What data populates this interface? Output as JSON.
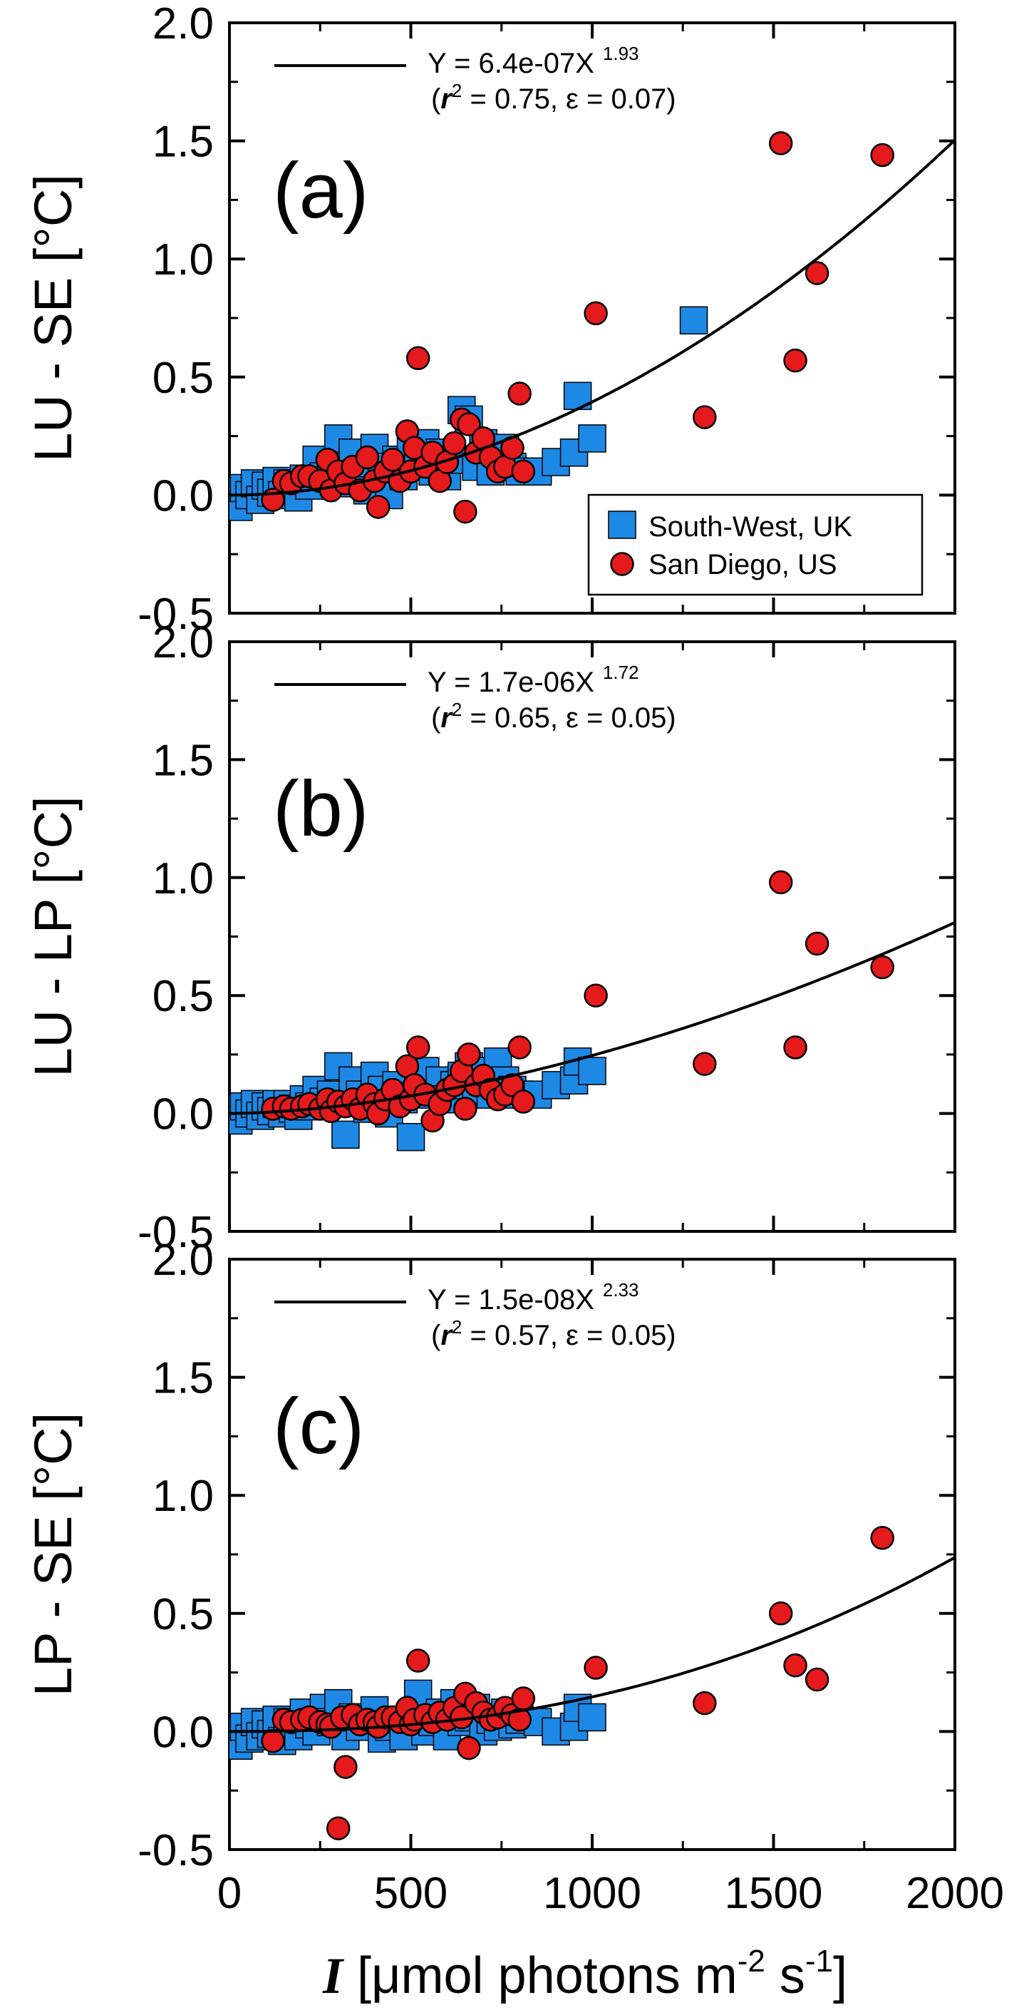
{
  "chart_data": [
    {
      "type": "scatter",
      "panel_label": "(a)",
      "ylabel": "LU - SE [°C]",
      "xlim": [
        0,
        2000
      ],
      "ylim": [
        -0.5,
        2.0
      ],
      "yticks": [
        "2.0",
        "1.5",
        "1.0",
        "0.5",
        "0.0",
        "-0.5"
      ],
      "fit": {
        "a": 6.4e-07,
        "b": 1.93,
        "label": "Y = 6.4e-07X",
        "exponent": "1.93",
        "stats_r": "r",
        "stats_sup": "2",
        "stats_rest": " = 0.75, ε = 0.07)"
      },
      "legend": [
        "South-West, UK",
        "San Diego, US"
      ],
      "series": [
        {
          "name": "South-West, UK",
          "marker": "square",
          "x": [
            10,
            25,
            40,
            55,
            70,
            85,
            100,
            115,
            130,
            145,
            160,
            175,
            190,
            205,
            220,
            240,
            260,
            280,
            300,
            320,
            340,
            360,
            380,
            400,
            420,
            440,
            460,
            480,
            500,
            520,
            540,
            560,
            580,
            600,
            620,
            640,
            660,
            680,
            700,
            720,
            740,
            760,
            780,
            800,
            850,
            900,
            950,
            960,
            1000,
            1280
          ],
          "y": [
            0.02,
            -0.05,
            0.03,
            0.0,
            0.05,
            -0.02,
            0.04,
            0.01,
            0.06,
            0.0,
            0.05,
            0.03,
            -0.01,
            0.07,
            0.04,
            0.15,
            0.08,
            0.12,
            0.24,
            0.05,
            0.18,
            0.1,
            0.02,
            0.2,
            0.12,
            0.0,
            0.15,
            0.08,
            0.2,
            0.14,
            0.22,
            0.1,
            0.18,
            0.08,
            0.15,
            0.36,
            0.32,
            0.12,
            0.22,
            0.1,
            0.18,
            0.2,
            0.12,
            0.1,
            0.1,
            0.14,
            0.18,
            0.42,
            0.24,
            0.74
          ]
        },
        {
          "name": "San Diego, US",
          "marker": "circle",
          "x": [
            120,
            150,
            170,
            200,
            220,
            250,
            270,
            280,
            300,
            320,
            340,
            360,
            380,
            400,
            410,
            430,
            450,
            470,
            490,
            500,
            510,
            520,
            540,
            560,
            580,
            600,
            620,
            640,
            650,
            660,
            680,
            700,
            720,
            740,
            760,
            780,
            800,
            810,
            1010,
            1310,
            1520,
            1560,
            1620,
            1800
          ],
          "y": [
            -0.02,
            0.06,
            0.05,
            0.08,
            0.08,
            0.06,
            0.15,
            0.02,
            0.1,
            0.05,
            0.12,
            0.02,
            0.16,
            0.06,
            -0.05,
            0.1,
            0.15,
            0.06,
            0.27,
            0.1,
            0.2,
            0.58,
            0.12,
            0.18,
            0.06,
            0.14,
            0.22,
            0.32,
            -0.07,
            0.3,
            0.18,
            0.24,
            0.16,
            0.1,
            0.12,
            0.2,
            0.43,
            0.1,
            0.77,
            0.33,
            1.49,
            0.57,
            0.94,
            1.44
          ]
        }
      ]
    },
    {
      "type": "scatter",
      "panel_label": "(b)",
      "ylabel": "LU - LP [°C]",
      "xlim": [
        0,
        2000
      ],
      "ylim": [
        -0.5,
        2.0
      ],
      "yticks": [
        "2.0",
        "1.5",
        "1.0",
        "0.5",
        "0.0",
        "-0.5"
      ],
      "fit": {
        "a": 1.7e-06,
        "b": 1.72,
        "label": "Y = 1.7e-06X",
        "exponent": "1.72",
        "stats_r": "r",
        "stats_sup": "2",
        "stats_rest": " = 0.65, ε = 0.05)"
      },
      "series": [
        {
          "name": "South-West, UK",
          "marker": "square",
          "x": [
            10,
            25,
            40,
            55,
            70,
            85,
            100,
            115,
            130,
            145,
            160,
            175,
            190,
            205,
            220,
            240,
            260,
            280,
            300,
            320,
            340,
            360,
            380,
            400,
            420,
            440,
            460,
            480,
            500,
            520,
            540,
            560,
            580,
            600,
            620,
            640,
            660,
            680,
            700,
            720,
            740,
            760,
            780,
            800,
            850,
            900,
            950,
            960,
            1000
          ],
          "y": [
            0.02,
            -0.03,
            0.03,
            0.0,
            0.04,
            -0.01,
            0.03,
            0.01,
            0.04,
            0.0,
            0.04,
            0.02,
            -0.01,
            0.06,
            0.03,
            0.1,
            0.05,
            0.08,
            0.2,
            -0.09,
            0.14,
            0.08,
            0.02,
            0.16,
            0.1,
            0.0,
            0.12,
            0.06,
            -0.1,
            0.12,
            0.18,
            0.08,
            0.14,
            0.06,
            0.12,
            0.16,
            0.2,
            0.1,
            0.18,
            0.08,
            0.22,
            0.14,
            0.1,
            0.08,
            0.08,
            0.12,
            0.14,
            0.22,
            0.18
          ]
        },
        {
          "name": "San Diego, US",
          "marker": "circle",
          "x": [
            120,
            150,
            170,
            200,
            220,
            250,
            270,
            280,
            300,
            320,
            340,
            360,
            380,
            400,
            410,
            430,
            450,
            470,
            490,
            500,
            510,
            520,
            540,
            560,
            580,
            600,
            620,
            640,
            650,
            660,
            680,
            700,
            720,
            740,
            760,
            780,
            800,
            810,
            1010,
            1310,
            1520,
            1560,
            1620,
            1800
          ],
          "y": [
            0.02,
            0.03,
            0.02,
            0.03,
            0.04,
            0.02,
            0.06,
            0.01,
            0.05,
            0.03,
            0.06,
            0.02,
            0.08,
            0.04,
            0.0,
            0.06,
            0.1,
            0.03,
            0.2,
            0.06,
            0.12,
            0.28,
            0.08,
            -0.03,
            0.04,
            0.1,
            0.12,
            0.18,
            0.02,
            0.25,
            0.12,
            0.16,
            0.1,
            0.06,
            0.08,
            0.12,
            0.28,
            0.05,
            0.5,
            0.21,
            0.98,
            0.28,
            0.72,
            0.62
          ]
        }
      ]
    },
    {
      "type": "scatter",
      "panel_label": "(c)",
      "ylabel": "LP - SE  [°C]",
      "xlabel_italic": "I",
      "xlabel_rest": " [μmol photons m",
      "xlabel_sup1": "-2",
      "xlabel_mid": " s",
      "xlabel_sup2": "-1",
      "xlabel_end": "]",
      "xlim": [
        0,
        2000
      ],
      "ylim": [
        -0.5,
        2.0
      ],
      "yticks": [
        "2.0",
        "1.5",
        "1.0",
        "0.5",
        "0.0",
        "-0.5"
      ],
      "xticks": [
        "0",
        "500",
        "1000",
        "1500",
        "2000"
      ],
      "fit": {
        "a": 1.5e-08,
        "b": 2.33,
        "label": "Y = 1.5e-08X",
        "exponent": "2.33",
        "stats_r": "r",
        "stats_sup": "2",
        "stats_rest": " = 0.57, ε = 0.05)"
      },
      "series": [
        {
          "name": "South-West, UK",
          "marker": "square",
          "x": [
            10,
            25,
            40,
            55,
            70,
            85,
            100,
            115,
            130,
            145,
            160,
            175,
            190,
            205,
            220,
            240,
            260,
            280,
            300,
            320,
            340,
            360,
            380,
            400,
            420,
            440,
            460,
            480,
            500,
            520,
            540,
            560,
            580,
            600,
            620,
            640,
            660,
            680,
            700,
            720,
            740,
            760,
            780,
            800,
            850,
            900,
            950,
            960,
            1000
          ],
          "y": [
            0.0,
            -0.06,
            0.02,
            -0.03,
            0.04,
            -0.02,
            0.03,
            -0.01,
            0.05,
            -0.04,
            0.04,
            0.02,
            -0.02,
            0.08,
            0.03,
            0.0,
            0.1,
            0.04,
            0.12,
            -0.02,
            0.06,
            0.02,
            0.06,
            0.09,
            -0.03,
            0.02,
            0.05,
            -0.02,
            0.06,
            0.16,
            0.0,
            0.04,
            0.08,
            -0.02,
            0.12,
            0.04,
            0.06,
            0.1,
            0.0,
            0.05,
            0.02,
            0.08,
            0.03,
            0.05,
            0.04,
            0.0,
            0.02,
            0.1,
            0.06
          ]
        },
        {
          "name": "San Diego, US",
          "marker": "circle",
          "x": [
            120,
            150,
            170,
            200,
            220,
            250,
            270,
            280,
            300,
            310,
            320,
            340,
            360,
            380,
            400,
            410,
            430,
            450,
            470,
            490,
            500,
            510,
            520,
            540,
            560,
            580,
            600,
            620,
            640,
            650,
            660,
            680,
            700,
            720,
            740,
            760,
            780,
            800,
            810,
            1010,
            1310,
            1520,
            1560,
            1620,
            1800
          ],
          "y": [
            -0.04,
            0.05,
            0.04,
            0.05,
            0.06,
            0.04,
            0.03,
            0.02,
            -0.41,
            0.06,
            -0.15,
            0.07,
            0.03,
            0.05,
            0.04,
            0.02,
            0.06,
            0.06,
            0.04,
            0.1,
            0.03,
            0.05,
            0.3,
            0.07,
            0.04,
            0.08,
            0.05,
            0.1,
            0.06,
            0.16,
            -0.07,
            0.12,
            0.08,
            0.05,
            0.06,
            0.1,
            0.07,
            0.05,
            0.14,
            0.27,
            0.12,
            0.5,
            0.28,
            0.22,
            0.82
          ]
        }
      ]
    }
  ],
  "colors": {
    "square": "#1E88E5",
    "circle": "#E41A1C",
    "axis": "#000000",
    "fit": "#000000"
  }
}
